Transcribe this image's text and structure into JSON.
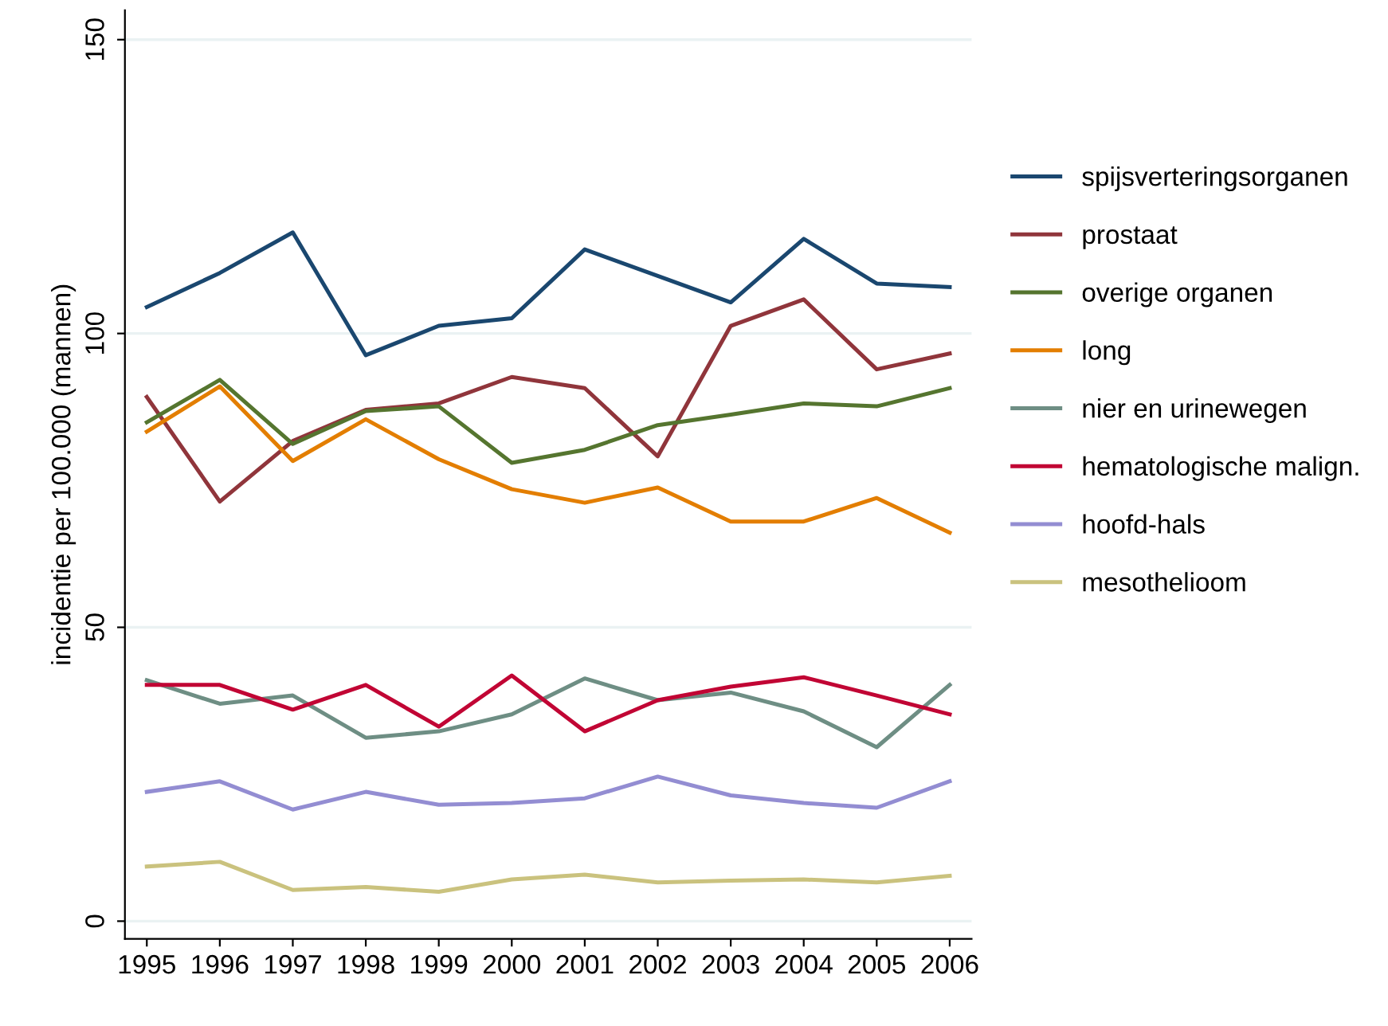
{
  "chart_data": {
    "type": "line",
    "ylabel": "incidentie per 100.000 (mannen)",
    "x": [
      1995,
      1996,
      1997,
      1998,
      1999,
      2000,
      2001,
      2002,
      2003,
      2004,
      2005,
      2006
    ],
    "xlim": [
      1994.7,
      2006.3
    ],
    "xticks": [
      1995,
      1996,
      1997,
      1998,
      1999,
      2000,
      2001,
      2002,
      2003,
      2004,
      2005,
      2006
    ],
    "ylim": [
      -3,
      155
    ],
    "yticks": [
      0,
      50,
      100,
      150
    ],
    "grid": "y",
    "legend": "right",
    "series": [
      {
        "name": "spijsverteringsorganen",
        "color": "#1a476f",
        "values": [
          104.5,
          110.3,
          117.2,
          96.3,
          101.3,
          102.6,
          114.3,
          109.8,
          105.3,
          116.1,
          108.5,
          107.9
        ]
      },
      {
        "name": "prostaat",
        "color": "#90353b",
        "values": [
          89.2,
          71.4,
          81.7,
          87.0,
          88.1,
          92.6,
          90.7,
          79.1,
          101.3,
          105.8,
          93.9,
          96.6
        ]
      },
      {
        "name": "overige organen",
        "color": "#55752f",
        "values": [
          84.9,
          92.1,
          81.2,
          86.8,
          87.6,
          78.0,
          80.2,
          84.4,
          86.2,
          88.1,
          87.6,
          90.7
        ]
      },
      {
        "name": "long",
        "color": "#e37e00",
        "values": [
          83.3,
          91.0,
          78.3,
          85.4,
          78.6,
          73.5,
          71.2,
          73.8,
          68.0,
          68.0,
          72.0,
          66.1
        ]
      },
      {
        "name": "nier en urinewegen",
        "color": "#6e8e84",
        "values": [
          41.0,
          37.0,
          38.4,
          31.2,
          32.3,
          35.2,
          41.3,
          37.6,
          38.9,
          35.7,
          29.6,
          40.2
        ]
      },
      {
        "name": "hematologische malign.",
        "color": "#c10534",
        "values": [
          40.2,
          40.2,
          36.0,
          40.2,
          33.1,
          41.8,
          32.3,
          37.6,
          39.9,
          41.5,
          38.4,
          35.2
        ]
      },
      {
        "name": "hoofd-hals",
        "color": "#938dd2",
        "values": [
          22.0,
          23.8,
          19.0,
          22.0,
          19.8,
          20.1,
          20.9,
          24.6,
          21.4,
          20.1,
          19.3,
          23.8
        ]
      },
      {
        "name": "mesothelioom",
        "color": "#cac27e",
        "values": [
          9.3,
          10.1,
          5.3,
          5.8,
          5.0,
          7.1,
          7.9,
          6.6,
          6.9,
          7.1,
          6.6,
          7.7
        ]
      }
    ]
  }
}
